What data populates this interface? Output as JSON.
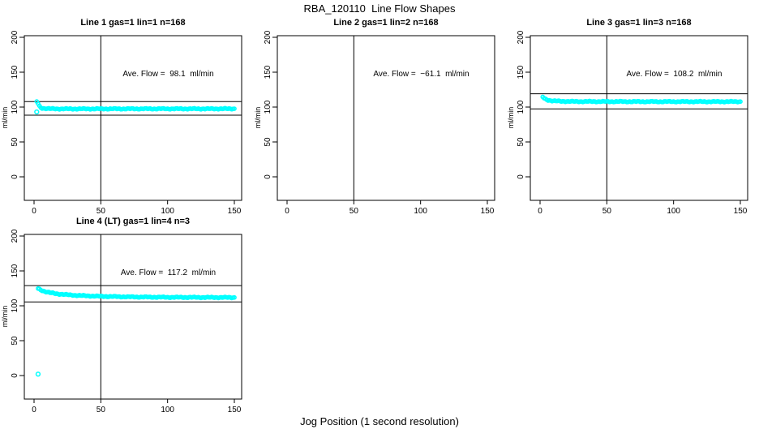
{
  "page_title": "RBA_120110  Line Flow Shapes",
  "x_axis_label": "Jog Position (1 second resolution)",
  "colors": {
    "points": "#00ffff",
    "axis": "#000000",
    "background": "#ffffff"
  },
  "chart_data": [
    {
      "type": "scatter",
      "title": "Line 1 gas=1 lin=1 n=168",
      "annotation": "Ave. Flow =  98.1  ml/min",
      "ave_flow_ml_min": 98.1,
      "ylabel": "ml/min",
      "xlim": [
        0,
        150
      ],
      "ylim": [
        0,
        200
      ],
      "x_ticks": [
        0,
        50,
        100,
        150
      ],
      "y_ticks": [
        0,
        50,
        100,
        150,
        200
      ],
      "vline_x": 50,
      "hlines": [
        107.9,
        88.3
      ],
      "marker": "open-circle",
      "marker_color": "#00ffff",
      "point_step": 1,
      "keypoints": [
        [
          2,
          108
        ],
        [
          3,
          105
        ],
        [
          4,
          101.5
        ],
        [
          5,
          99.5
        ],
        [
          6,
          98.5
        ],
        [
          8,
          98
        ],
        [
          12,
          97.6
        ],
        [
          20,
          97.4
        ],
        [
          40,
          97.4
        ],
        [
          70,
          97.5
        ],
        [
          100,
          97.5
        ],
        [
          130,
          97.5
        ],
        [
          150,
          97.6
        ]
      ],
      "outliers": [
        [
          2,
          93
        ]
      ]
    },
    {
      "type": "scatter",
      "title": "Line 2 gas=1 lin=2 n=168",
      "annotation": "Ave. Flow =  −61.1  ml/min",
      "ave_flow_ml_min": -61.1,
      "ylabel": "ml/min",
      "xlim": [
        0,
        150
      ],
      "ylim": [
        0,
        200
      ],
      "x_ticks": [
        0,
        50,
        100,
        150
      ],
      "y_ticks": [
        0,
        50,
        100,
        150,
        200
      ],
      "vline_x": 50,
      "hlines": [],
      "marker": "open-circle",
      "marker_color": "#00ffff",
      "point_step": 1,
      "keypoints": [],
      "outliers": []
    },
    {
      "type": "scatter",
      "title": "Line 3 gas=1 lin=3 n=168",
      "annotation": "Ave. Flow =  108.2  ml/min",
      "ave_flow_ml_min": 108.2,
      "ylabel": "ml/min",
      "xlim": [
        0,
        150
      ],
      "ylim": [
        0,
        200
      ],
      "x_ticks": [
        0,
        50,
        100,
        150
      ],
      "y_ticks": [
        0,
        50,
        100,
        150,
        200
      ],
      "vline_x": 50,
      "hlines": [
        119.0,
        97.4
      ],
      "marker": "open-circle",
      "marker_color": "#00ffff",
      "point_step": 1,
      "keypoints": [
        [
          2,
          114.5
        ],
        [
          3,
          112.8
        ],
        [
          4,
          111.5
        ],
        [
          6,
          110
        ],
        [
          9,
          109
        ],
        [
          14,
          108.4
        ],
        [
          25,
          108
        ],
        [
          50,
          107.9
        ],
        [
          80,
          107.8
        ],
        [
          110,
          107.8
        ],
        [
          150,
          107.8
        ]
      ],
      "outliers": []
    },
    {
      "type": "scatter",
      "title": "Line 4 (LT) gas=1 lin=4 n=3",
      "annotation": "Ave. Flow =  117.2  ml/min",
      "ave_flow_ml_min": 117.2,
      "ylabel": "ml/min",
      "xlim": [
        0,
        150
      ],
      "ylim": [
        0,
        200
      ],
      "x_ticks": [
        0,
        50,
        100,
        150
      ],
      "y_ticks": [
        0,
        50,
        100,
        150,
        200
      ],
      "vline_x": 50,
      "hlines": [
        128.9,
        105.5
      ],
      "marker": "open-circle",
      "marker_color": "#00ffff",
      "point_step": 1,
      "keypoints": [
        [
          3,
          124.8
        ],
        [
          5,
          122.8
        ],
        [
          8,
          120.6
        ],
        [
          12,
          118.7
        ],
        [
          18,
          117
        ],
        [
          25,
          115.8
        ],
        [
          35,
          114.6
        ],
        [
          50,
          113.6
        ],
        [
          70,
          112.8
        ],
        [
          100,
          112.2
        ],
        [
          130,
          112
        ],
        [
          150,
          111.9
        ]
      ],
      "outliers": [
        [
          3,
          2
        ]
      ]
    }
  ]
}
